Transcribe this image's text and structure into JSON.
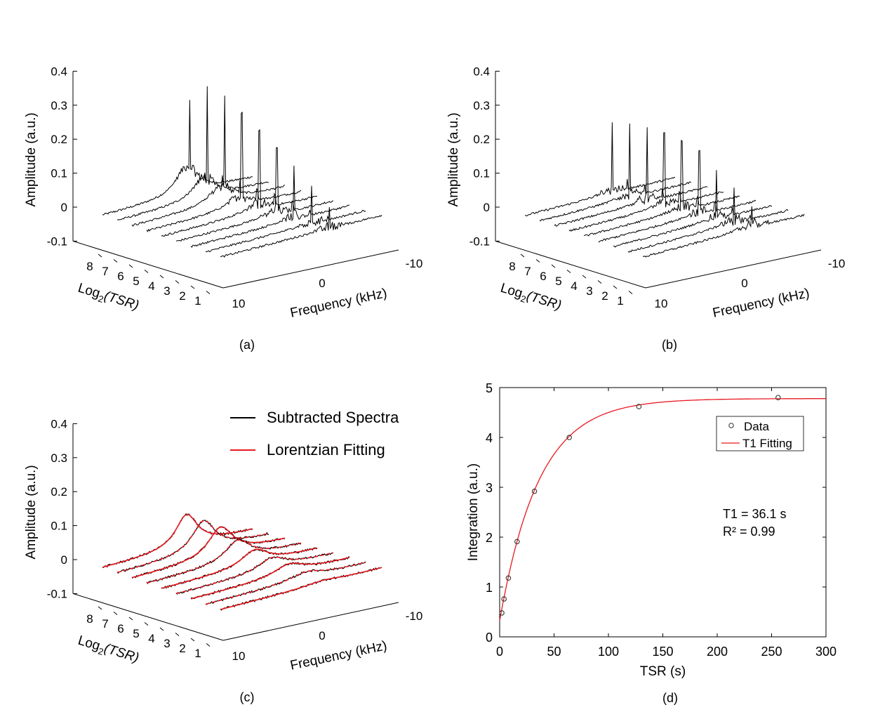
{
  "figure": {
    "panels": [
      "(a)",
      "(b)",
      "(c)",
      "(d)"
    ]
  },
  "chart_data": [
    {
      "id": "a",
      "type": "waterfall",
      "panel_label": "(a)",
      "ylabel": "Amplitude (a.u.)",
      "zticks": [
        "0.4",
        "0.3",
        "0.2",
        "0.1",
        "0",
        "-0.1"
      ],
      "depth_label": "Log₂(TSR)",
      "depth_ticks": [
        "8",
        "7",
        "6",
        "5",
        "4",
        "3",
        "2",
        "1"
      ],
      "freq_label": "Frequency (kHz)",
      "freq_ticks": [
        "-10",
        "0",
        "10"
      ],
      "spectra_count": 9,
      "peak_heights": [
        0.2,
        0.27,
        0.27,
        0.25,
        0.22,
        0.19,
        0.15,
        0.11,
        0.06
      ],
      "broad_heights": [
        0.08,
        0.06,
        0.05,
        0.03,
        0.02,
        0.012,
        0.008,
        0.005,
        0.003
      ]
    },
    {
      "id": "b",
      "type": "waterfall",
      "panel_label": "(b)",
      "ylabel": "Amplitude (a.u.)",
      "zticks": [
        "0.4",
        "0.3",
        "0.2",
        "0.1",
        "0",
        "-0.1"
      ],
      "depth_label": "Log₂(TSR)",
      "depth_ticks": [
        "8",
        "7",
        "6",
        "5",
        "4",
        "3",
        "2",
        "1"
      ],
      "freq_label": "Frequency (kHz)",
      "freq_ticks": [
        "-10",
        "0",
        "10"
      ],
      "spectra_count": 9,
      "peak_heights": [
        0.2,
        0.21,
        0.21,
        0.21,
        0.2,
        0.18,
        0.14,
        0.1,
        0.06
      ],
      "broad_heights": [
        0.01,
        0.01,
        0.01,
        0.01,
        0.01,
        0.01,
        0.01,
        0.01,
        0.01
      ]
    },
    {
      "id": "c",
      "type": "waterfall",
      "panel_label": "(c)",
      "ylabel": "Amplitude (a.u.)",
      "zticks": [
        "0.4",
        "0.3",
        "0.2",
        "0.1",
        "0",
        "-0.1"
      ],
      "depth_label": "Log₂(TSR)",
      "depth_ticks": [
        "8",
        "7",
        "6",
        "5",
        "4",
        "3",
        "2",
        "1"
      ],
      "freq_label": "Frequency (kHz)",
      "freq_ticks": [
        "-10",
        "0",
        "10"
      ],
      "spectra_count": 9,
      "broad_heights": [
        0.095,
        0.09,
        0.085,
        0.06,
        0.045,
        0.035,
        0.03,
        0.02,
        0.008
      ],
      "legend": [
        {
          "label": "Subtracted Spectra",
          "color": "#000000"
        },
        {
          "label": "Lorentzian Fitting",
          "color": "#e8191f"
        }
      ]
    },
    {
      "id": "d",
      "type": "scatter",
      "panel_label": "(d)",
      "xlabel": "TSR (s)",
      "ylabel": "Integration (a.u.)",
      "xlim": [
        0,
        300
      ],
      "ylim": [
        0,
        5
      ],
      "xticks": [
        0,
        50,
        100,
        150,
        200,
        250,
        300
      ],
      "yticks": [
        0,
        1,
        2,
        3,
        4,
        5
      ],
      "series": [
        {
          "name": "Data",
          "x": [
            2,
            4,
            8,
            16,
            32,
            64,
            128,
            256
          ],
          "y": [
            0.48,
            0.76,
            1.18,
            1.91,
            2.92,
            4.0,
            4.62,
            4.8
          ]
        },
        {
          "name": "T1 Fitting",
          "model": "M0*(1-exp(-x/T1))",
          "M0": 4.78,
          "T1": 36.1,
          "offset": 0.32,
          "color": "#e8191f"
        }
      ],
      "annotations": [
        "T1 = 36.1 s",
        "R² = 0.99"
      ]
    }
  ]
}
